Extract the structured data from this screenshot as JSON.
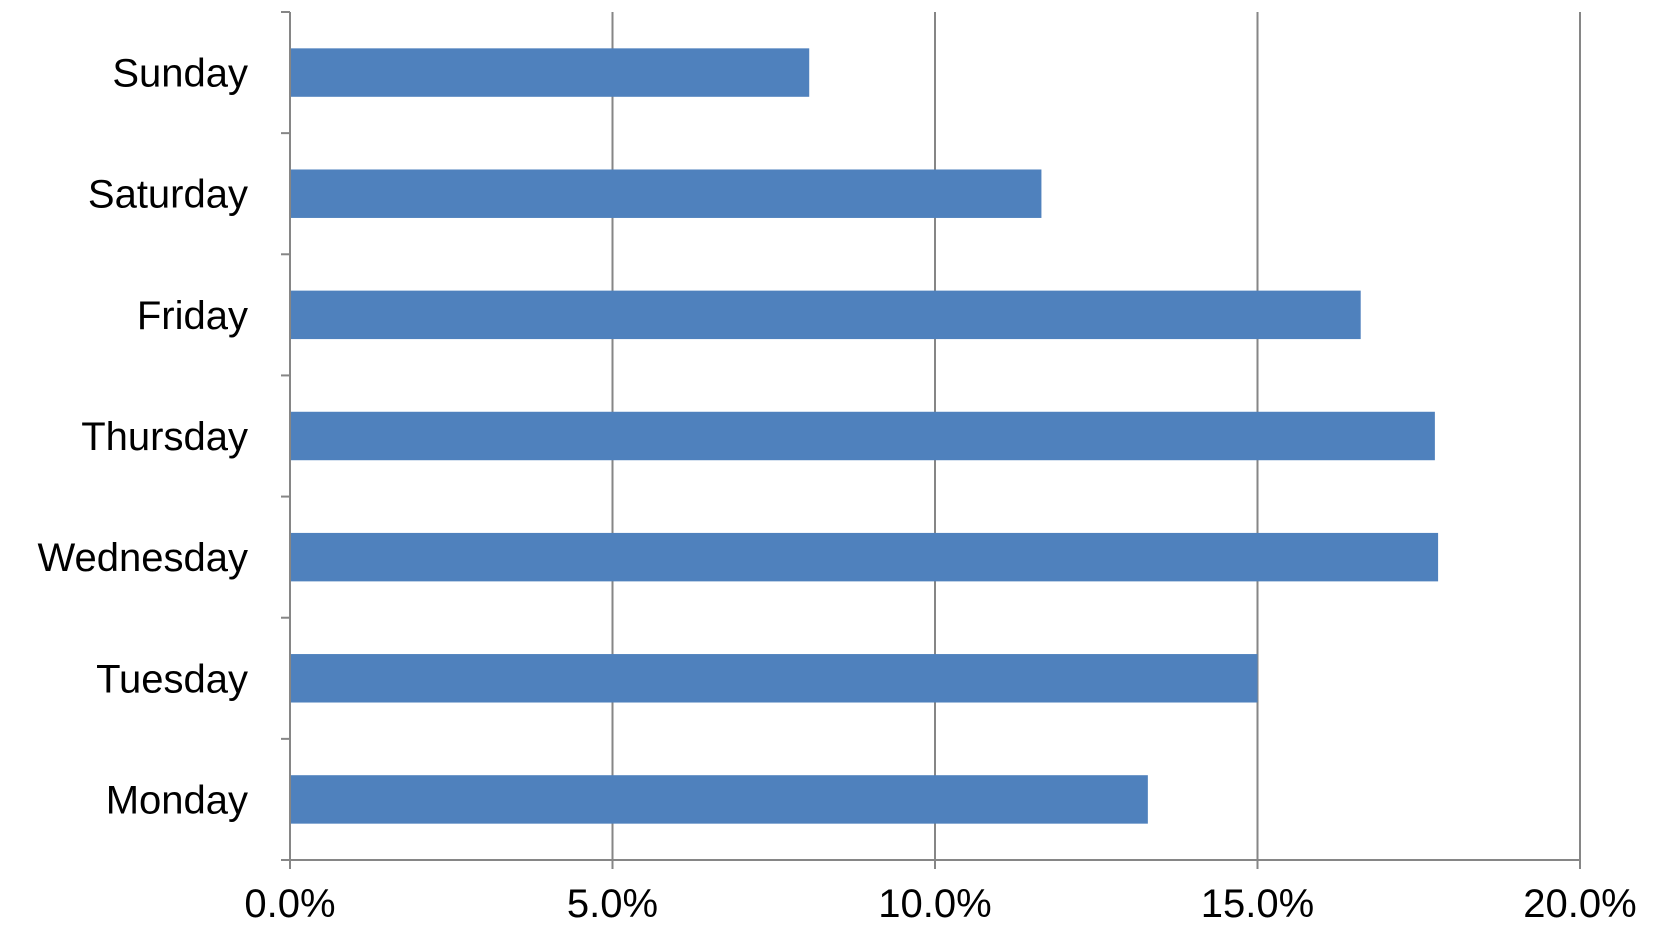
{
  "chart_data": {
    "type": "bar",
    "orientation": "horizontal",
    "categories": [
      "Monday",
      "Tuesday",
      "Wednesday",
      "Thursday",
      "Friday",
      "Saturday",
      "Sunday"
    ],
    "values": [
      13.3,
      15.0,
      17.8,
      17.75,
      16.6,
      11.65,
      8.05
    ],
    "x_ticks": [
      "0.0%",
      "5.0%",
      "10.0%",
      "15.0%",
      "20.0%"
    ],
    "xlim": [
      0,
      20
    ],
    "xlabel": "",
    "ylabel": "",
    "title": "",
    "grid": "vertical gridlines",
    "legend": "none",
    "bar_color": "#4f81bd",
    "grid_color": "#868686",
    "axis_color": "#868686"
  }
}
